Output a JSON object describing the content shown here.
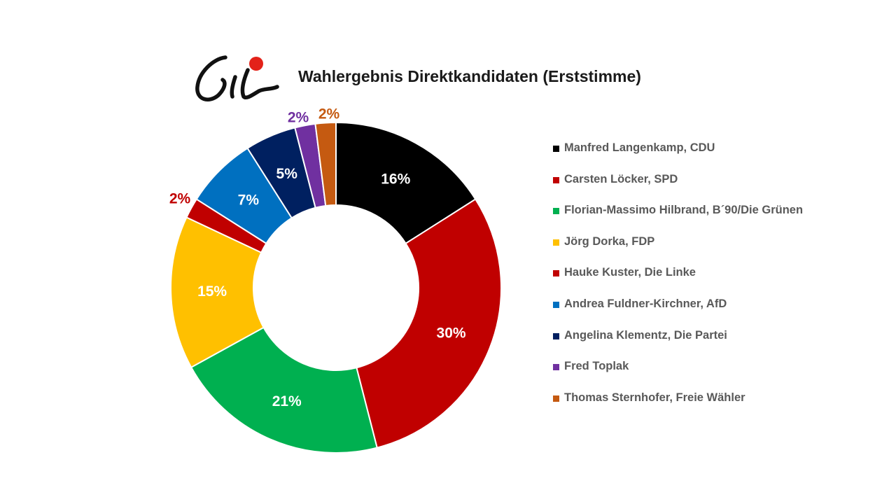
{
  "chart_data": {
    "type": "pie",
    "variant": "donut",
    "title": "Wahlergebnis Direktkandidaten (Erststimme)",
    "slices": [
      {
        "name": "Manfred Langenkamp, CDU",
        "value": 16,
        "label": "16%",
        "color": "#000000",
        "label_color": "#ffffff",
        "label_position": "inside"
      },
      {
        "name": "Carsten Löcker, SPD",
        "value": 30,
        "label": "30%",
        "color": "#c00000",
        "label_color": "#ffffff",
        "label_position": "inside"
      },
      {
        "name": "Florian-Massimo Hilbrand, B´90/Die Grünen",
        "value": 21,
        "label": "21%",
        "color": "#00b050",
        "label_color": "#ffffff",
        "label_position": "inside"
      },
      {
        "name": "Jörg Dorka, FDP",
        "value": 15,
        "label": "15%",
        "color": "#ffc000",
        "label_color": "#ffffff",
        "label_position": "inside"
      },
      {
        "name": "Hauke Kuster, Die Linke",
        "value": 2,
        "label": "2%",
        "color": "#c00000",
        "label_color": "#c00000",
        "label_position": "outside"
      },
      {
        "name": "Andrea Fuldner-Kirchner, AfD",
        "value": 7,
        "label": "7%",
        "color": "#0070c0",
        "label_color": "#ffffff",
        "label_position": "inside"
      },
      {
        "name": "Angelina Klementz, Die Partei",
        "value": 5,
        "label": "5%",
        "color": "#002060",
        "label_color": "#ffffff",
        "label_position": "inside"
      },
      {
        "name": "Fred Toplak",
        "value": 2,
        "label": "2%",
        "color": "#7030a0",
        "label_color": "#7030a0",
        "label_position": "outside"
      },
      {
        "name": "Thomas Sternhofer, Freie Wähler",
        "value": 2,
        "label": "2%",
        "color": "#c55a11",
        "label_color": "#c55a11",
        "label_position": "outside"
      }
    ],
    "legend_position": "right"
  },
  "logo": {
    "accent_color": "#e32219",
    "ink_color": "#111111"
  }
}
